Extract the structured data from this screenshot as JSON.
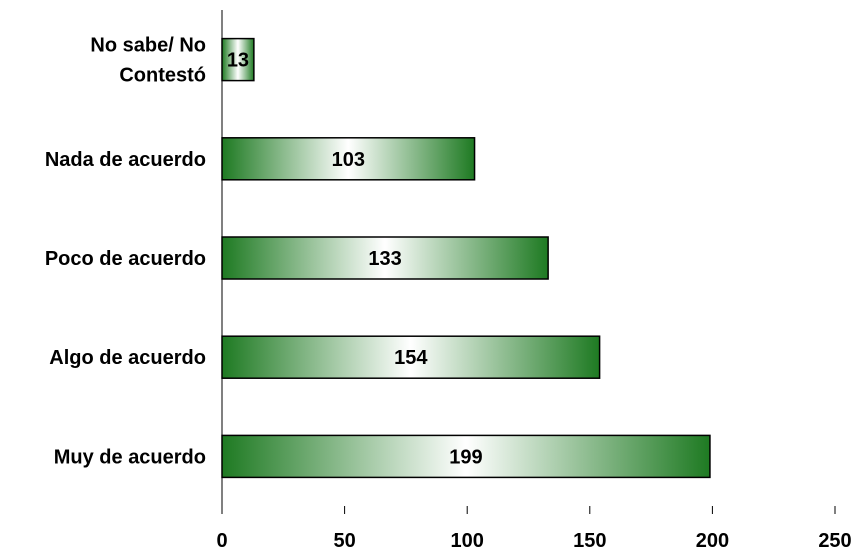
{
  "chart_data": {
    "type": "bar",
    "orientation": "horizontal",
    "categories": [
      "No sabe/ No Contestó",
      "Nada de acuerdo",
      "Poco de acuerdo",
      "Algo de acuerdo",
      "Muy de acuerdo"
    ],
    "category_lines": [
      [
        "No sabe/ No",
        "Contestó"
      ],
      [
        "Nada de acuerdo"
      ],
      [
        "Poco de acuerdo"
      ],
      [
        "Algo de acuerdo"
      ],
      [
        "Muy de acuerdo"
      ]
    ],
    "values": [
      13,
      103,
      133,
      154,
      199
    ],
    "xlim": [
      0,
      250
    ],
    "xticks": [
      0,
      50,
      100,
      150,
      200,
      250
    ],
    "grid": false,
    "legend": "none",
    "colors": {
      "bar_dark": "#1e7a22",
      "bar_light": "#ffffff",
      "bar_edge": "#000000",
      "axis": "#000000"
    }
  }
}
